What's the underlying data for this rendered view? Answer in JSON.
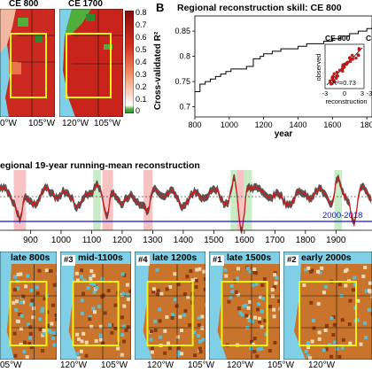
{
  "colors": {
    "reconstruction": "#d11a1a",
    "uncertainty": "#3a3a3a",
    "instrumental": "#1418c8",
    "drought_shade": "#f6c2c2",
    "pluvial_shade": "#c8ecc6",
    "map_ocean": "#7fd0e6",
    "box": "#f2f214"
  },
  "panel_a": {
    "maps": [
      {
        "title": "CE 800"
      },
      {
        "title": "CE 1700"
      }
    ],
    "lon_labels": [
      "0°W",
      "105°W",
      "120°W",
      "105°W"
    ],
    "colorbar": {
      "ticks": [
        "0.8",
        "0.7",
        "0.6",
        "0.5",
        "0.4",
        "0.3",
        "0.2",
        "0.1",
        "0"
      ]
    }
  },
  "panel_b": {
    "letter": "B",
    "title": "Regional reconstruction skill: CE 800",
    "ylabel": "Cross-validated R²",
    "xlabel": "year",
    "yticks": [
      "0.85",
      "0.8",
      "0.75",
      "0.7"
    ],
    "xticks": [
      "800",
      "1000",
      "1200",
      "1400",
      "1600",
      "180"
    ],
    "inset": {
      "title_a": "CE 800",
      "title_b": "C",
      "ylabel": "observed",
      "xlabel": "reconstruction",
      "r2": "R²=0.73",
      "xticks": [
        "-3",
        "0",
        "3",
        "-3"
      ]
    }
  },
  "panel_c": {
    "title": "egional 19-year running-mean reconstruction",
    "legend": "2000-2018",
    "xticks": [
      "900",
      "1000",
      "1100",
      "1200",
      "1300",
      "1400",
      "1500",
      "1600",
      "1700",
      "1800",
      "1900"
    ]
  },
  "panel_d": {
    "maps": [
      {
        "label": "late 800s",
        "rank": ""
      },
      {
        "label": "mid-1100s",
        "rank": "#3"
      },
      {
        "label": "late 1200s",
        "rank": "#4"
      },
      {
        "label": "late 1500s",
        "rank": "#1"
      },
      {
        "label": "early 2000s",
        "rank": "#2"
      }
    ],
    "lon_labels": [
      "05°W",
      "120°W",
      "105°W",
      "120°W",
      "105°W",
      "120°W",
      "105°W",
      "120°W"
    ]
  },
  "chart_data": [
    {
      "type": "line",
      "title": "Regional reconstruction skill: CE 800",
      "xlabel": "year",
      "ylabel": "Cross-validated R²",
      "xlim": [
        800,
        1830
      ],
      "ylim": [
        0.68,
        0.88
      ],
      "series": [
        {
          "x": [
            800,
            830,
            860,
            890,
            920,
            950,
            980,
            1010,
            1050,
            1100,
            1140,
            1180,
            1200,
            1250,
            1300,
            1350,
            1400,
            1450,
            1500,
            1550,
            1600,
            1650,
            1700,
            1750,
            1800,
            1830
          ],
          "values": [
            0.73,
            0.745,
            0.75,
            0.755,
            0.76,
            0.765,
            0.77,
            0.775,
            0.775,
            0.78,
            0.795,
            0.8,
            0.805,
            0.81,
            0.815,
            0.815,
            0.82,
            0.825,
            0.825,
            0.83,
            0.835,
            0.84,
            0.845,
            0.85,
            0.855,
            0.86
          ]
        }
      ]
    },
    {
      "type": "line",
      "title": "egional 19-year running-mean reconstruction",
      "xlim": [
        800,
        2018
      ],
      "series": [
        {
          "name": "2000-2018",
          "x": [
            2000,
            2018
          ],
          "values": [
            -1.9,
            -1.9
          ]
        }
      ],
      "highlights": [
        {
          "kind": "drought",
          "range": [
            845,
            885
          ]
        },
        {
          "kind": "pluvial",
          "range": [
            1105,
            1130
          ]
        },
        {
          "kind": "drought",
          "range": [
            1135,
            1170
          ]
        },
        {
          "kind": "drought",
          "range": [
            1270,
            1300
          ]
        },
        {
          "kind": "pluvial",
          "range": [
            1555,
            1580
          ]
        },
        {
          "kind": "drought",
          "range": [
            1575,
            1600
          ]
        },
        {
          "kind": "pluvial",
          "range": [
            1600,
            1625
          ]
        },
        {
          "kind": "pluvial",
          "range": [
            1895,
            1920
          ]
        }
      ]
    }
  ]
}
